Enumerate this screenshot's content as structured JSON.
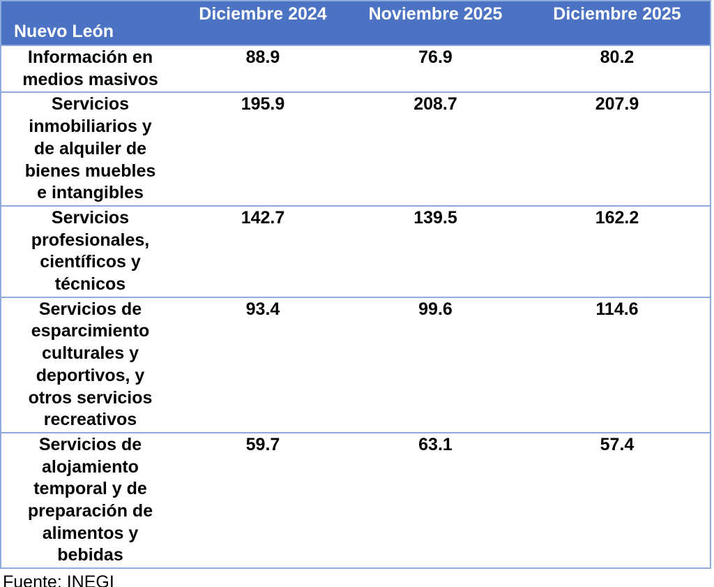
{
  "header": {
    "region": "Nuevo León",
    "columns": [
      "Diciembre 2024",
      "Noviembre 2025",
      "Diciembre 2025"
    ]
  },
  "rows": [
    {
      "label": "Información en medios masivos",
      "values": [
        "88.9",
        "76.9",
        "80.2"
      ]
    },
    {
      "label": "Servicios inmobiliarios y de alquiler de bienes muebles e intangibles",
      "values": [
        "195.9",
        "208.7",
        "207.9"
      ]
    },
    {
      "label": "Servicios profesionales, científicos y técnicos",
      "values": [
        "142.7",
        "139.5",
        "162.2"
      ]
    },
    {
      "label": "Servicios de esparcimiento culturales y deportivos, y otros servicios recreativos",
      "values": [
        "93.4",
        "99.6",
        "114.6"
      ]
    },
    {
      "label": "Servicios de alojamiento temporal y de preparación de alimentos y bebidas",
      "values": [
        "59.7",
        "63.1",
        "57.4"
      ]
    }
  ],
  "footer": {
    "source_label": "Fuente: INEGI"
  },
  "colors": {
    "header_bg": "#4C72C4",
    "header_text": "#FFFFFF",
    "border": "#8EA9DB",
    "body_text": "#000000"
  },
  "chart_data": {
    "type": "table",
    "title": "Nuevo León",
    "columns": [
      "Diciembre 2024",
      "Noviembre 2025",
      "Diciembre 2025"
    ],
    "categories": [
      "Información en medios masivos",
      "Servicios inmobiliarios y de alquiler de bienes muebles e intangibles",
      "Servicios profesionales, científicos y técnicos",
      "Servicios de esparcimiento culturales y deportivos, y otros servicios recreativos",
      "Servicios de alojamiento temporal y de preparación de alimentos y bebidas"
    ],
    "series": [
      {
        "name": "Diciembre 2024",
        "values": [
          88.9,
          195.9,
          142.7,
          93.4,
          59.7
        ]
      },
      {
        "name": "Noviembre 2025",
        "values": [
          76.9,
          208.7,
          139.5,
          99.6,
          63.1
        ]
      },
      {
        "name": "Diciembre 2025",
        "values": [
          80.2,
          207.9,
          162.2,
          114.6,
          57.4
        ]
      }
    ],
    "source": "Fuente: INEGI"
  }
}
